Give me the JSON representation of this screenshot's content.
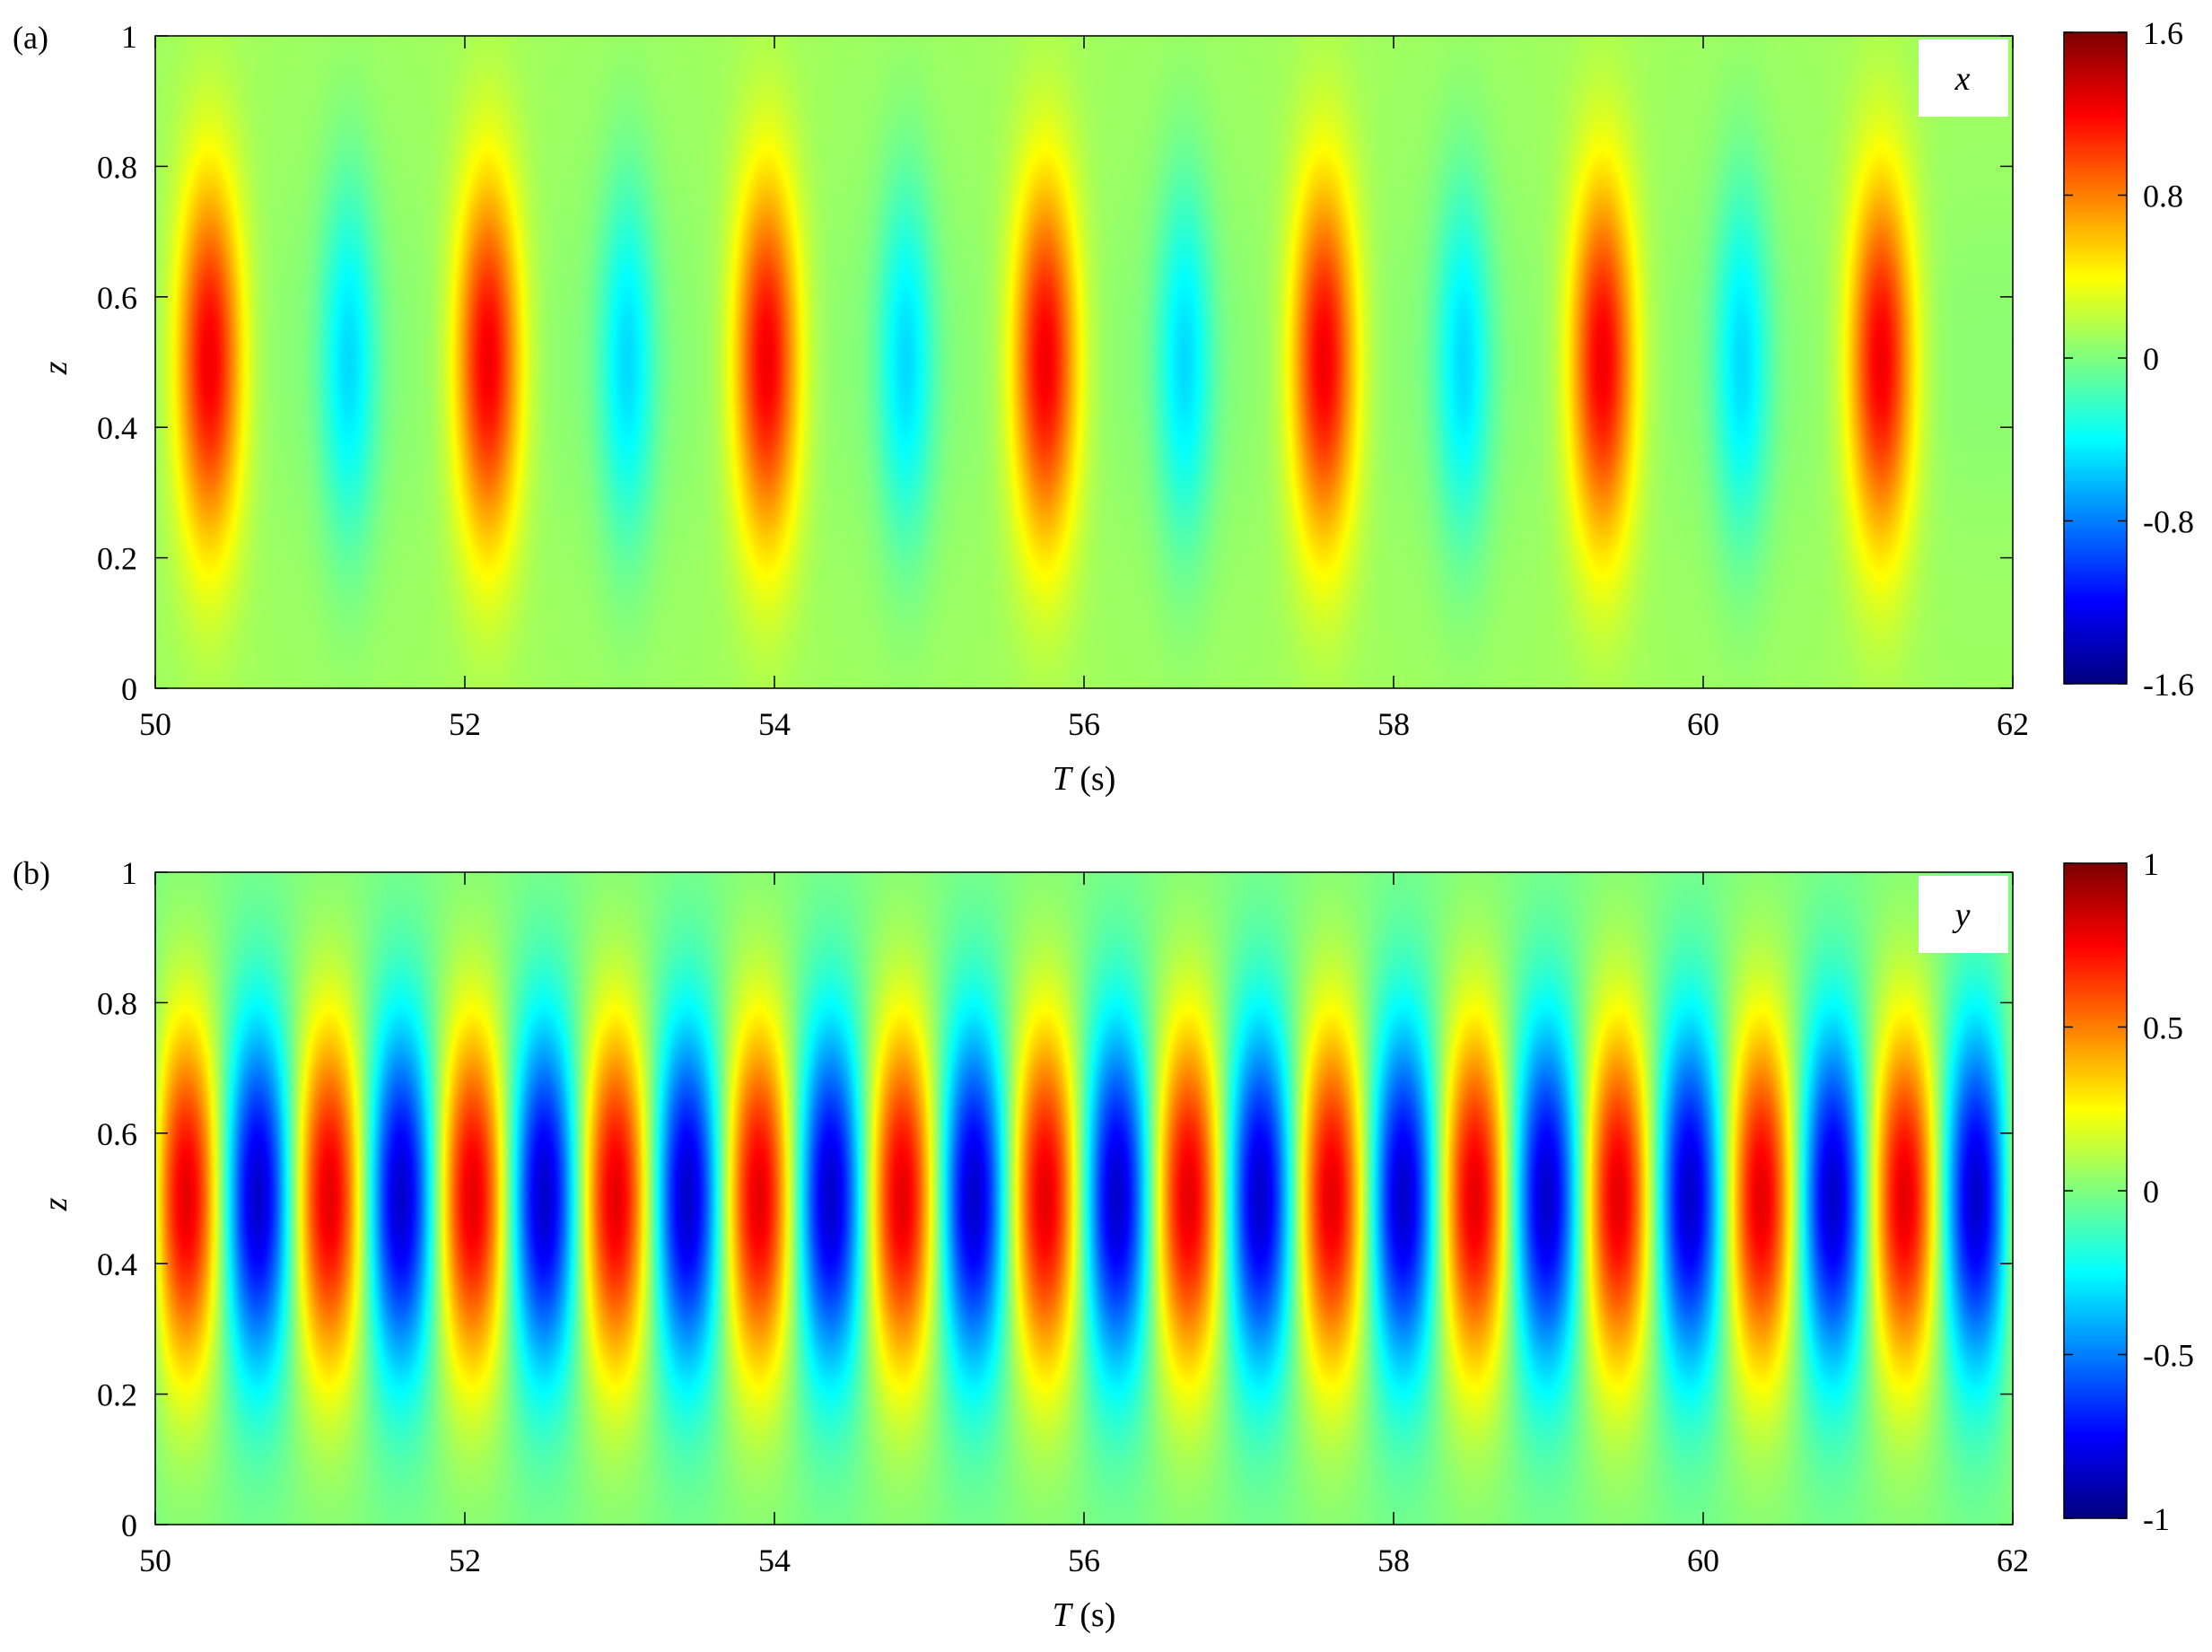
{
  "chart_data": [
    {
      "type": "heatmap",
      "panel_label": "(a)",
      "inset_label": "x",
      "xlabel_italic": "T",
      "xlabel_rest": " (s)",
      "ylabel": "z",
      "xlim": [
        50,
        62
      ],
      "ylim": [
        0,
        1
      ],
      "xticks": [
        50,
        52,
        54,
        56,
        58,
        60,
        62
      ],
      "yticks": [
        0,
        0.2,
        0.4,
        0.6,
        0.8,
        1
      ],
      "colorbar": {
        "clim": [
          -1.6,
          1.6
        ],
        "ticks": [
          -1.6,
          -0.8,
          0,
          0.8,
          1.6
        ],
        "colormap": "jet"
      },
      "field_description": {
        "max_peak_times": [
          50.35,
          52.15,
          53.95,
          55.75,
          57.55,
          59.35,
          61.15
        ],
        "min_trough_times": [
          51.25,
          53.05,
          54.85,
          56.65,
          58.45,
          60.25
        ],
        "peak_value": 1.2,
        "trough_value": -0.55,
        "z_center": 0.5,
        "background_value": 0.1
      }
    },
    {
      "type": "heatmap",
      "panel_label": "(b)",
      "inset_label": "y",
      "xlabel_italic": "T",
      "xlabel_rest": " (s)",
      "ylabel": "z",
      "xlim": [
        50,
        62
      ],
      "ylim": [
        0,
        1
      ],
      "xticks": [
        50,
        52,
        54,
        56,
        58,
        60,
        62
      ],
      "yticks": [
        0,
        0.2,
        0.4,
        0.6,
        0.8,
        1
      ],
      "colorbar": {
        "clim": [
          -1,
          1
        ],
        "ticks": [
          -1,
          -0.5,
          0,
          0.5,
          1
        ],
        "colormap": "jet"
      },
      "field_description": {
        "oscillation_period_s": 0.925,
        "first_peak_time": 50.2,
        "peak_value": 0.8,
        "trough_value": -0.85,
        "z_center": 0.5,
        "background_value": 0.0
      }
    }
  ]
}
